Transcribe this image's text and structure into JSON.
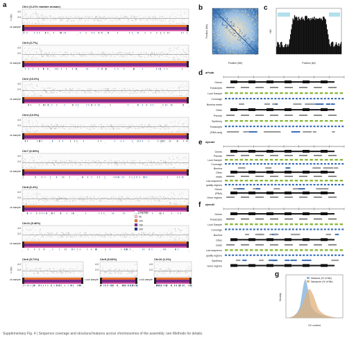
{
  "panel_letters": {
    "a": "a",
    "b": "b",
    "c": "c",
    "d": "d",
    "e": "e",
    "f": "f",
    "g": "g"
  },
  "panel_a": {
    "chromosomes": [
      {
        "title": "Chr1 (3.21% random mosaic)"
      },
      {
        "title": "Chr3 (3.7%)"
      },
      {
        "title": "Chr2 (10.6%)"
      },
      {
        "title": "Chr4 (10.5%)"
      },
      {
        "title": "Chr7 (6.93%)"
      },
      {
        "title": "Chr8 (6.4%)"
      },
      {
        "title": "Chr11 (5.46%)"
      }
    ],
    "bottom_titles": [
      {
        "title": "Chr6 (5.71%)"
      },
      {
        "title": "Chr9 (5.63%)"
      },
      {
        "title": "Chr10 (1.2%)"
      }
    ],
    "side_label": "Lock sample",
    "ylabel": "L (bp)",
    "yticks": [
      "4.0",
      "2.0"
    ],
    "legend": {
      "items": [
        "100-50%",
        "50",
        "100",
        "150",
        "200"
      ]
    }
  },
  "panel_b": {
    "xlabel": "Position (Mb)",
    "ylabel": "Position (Mb)"
  },
  "panel_c": {
    "xlabel": "Position (kb)",
    "ylabel": "HiC"
  },
  "panel_d": {
    "title": "at*vda",
    "tracks": [
      "Genes",
      "Transcripts",
      "Lock Sample",
      "Coverage",
      "Illumina reads",
      "Other",
      "Pseudo",
      "Syntheny",
      "Transcripts",
      "(RNA-seq)"
    ]
  },
  "panel_e": {
    "title": "dyrnd1",
    "tracks": [
      "Genes",
      "Pseudo",
      "Lock Sample",
      "Coverage",
      "Illumina",
      "Other",
      "reads",
      "Low sequence",
      "quality regions",
      "Genes",
      "(RNA)",
      "Gene regions"
    ]
  },
  "panel_f": {
    "title": "dyrcd1",
    "tracks": [
      "Genes",
      "Transcripts",
      "Lock Sample",
      "Coverage",
      "Illumina",
      "Other",
      "reads",
      "Low sequence",
      "quality regions",
      "Syntheny",
      "Gene regions"
    ]
  },
  "panel_g": {
    "xlabel": "GC content",
    "ylabel": "Density",
    "legend": [
      "Distance (% of Mb)",
      "Nanopore (% of Mb)"
    ]
  },
  "colors": {
    "scatter": "#9a9a9a",
    "heat_purple": "#7a2a8a",
    "heat_orange": "#e8702a",
    "blue": "#3a6fb5",
    "green": "#8ab83a",
    "tan": "#d9a86a",
    "lightblue": "#8cb8df"
  },
  "caption": "Supplementary Fig. 4 | Sequence coverage and structural features across chromosomes of the assembly; see Methods for details."
}
